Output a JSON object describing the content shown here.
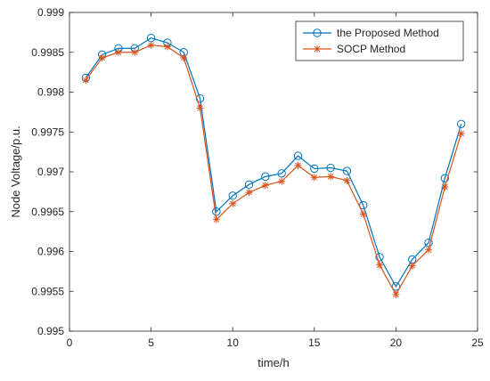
{
  "chart_data": {
    "type": "line",
    "xlabel": "time/h",
    "ylabel": "Node Voltage/p.u.",
    "xlim": [
      0,
      25
    ],
    "ylim": [
      0.995,
      0.999
    ],
    "xticks": [
      0,
      5,
      10,
      15,
      20,
      25
    ],
    "xtick_labels": [
      "0",
      "5",
      "10",
      "15",
      "20",
      "25"
    ],
    "yticks": [
      0.995,
      0.9955,
      0.996,
      0.9965,
      0.997,
      0.9975,
      0.998,
      0.9985,
      0.999
    ],
    "ytick_labels": [
      "0.995",
      "0.9955",
      "0.996",
      "0.9965",
      "0.997",
      "0.9975",
      "0.998",
      "0.9985",
      "0.999"
    ],
    "grid": false,
    "legend_position": "top-right",
    "x": [
      1,
      2,
      3,
      4,
      5,
      6,
      7,
      8,
      9,
      10,
      11,
      12,
      13,
      14,
      15,
      16,
      17,
      18,
      19,
      20,
      21,
      22,
      23,
      24
    ],
    "series": [
      {
        "name": "the Proposed Method",
        "color": "#0072BD",
        "marker": "circle",
        "values": [
          0.99818,
          0.99847,
          0.99855,
          0.99855,
          0.99868,
          0.99862,
          0.9985,
          0.99792,
          0.9965,
          0.9967,
          0.99684,
          0.99694,
          0.99698,
          0.9972,
          0.99704,
          0.99705,
          0.99701,
          0.99658,
          0.99593,
          0.99556,
          0.9959,
          0.99611,
          0.99692,
          0.9976
        ]
      },
      {
        "name": "SOCP Method",
        "color": "#D95319",
        "marker": "asterisk",
        "values": [
          0.99815,
          0.99843,
          0.9985,
          0.9985,
          0.99859,
          0.99857,
          0.99843,
          0.9978,
          0.9964,
          0.9966,
          0.99674,
          0.99683,
          0.99688,
          0.99708,
          0.99693,
          0.99694,
          0.99689,
          0.99647,
          0.99583,
          0.99546,
          0.99582,
          0.99602,
          0.99681,
          0.99748
        ]
      }
    ]
  }
}
